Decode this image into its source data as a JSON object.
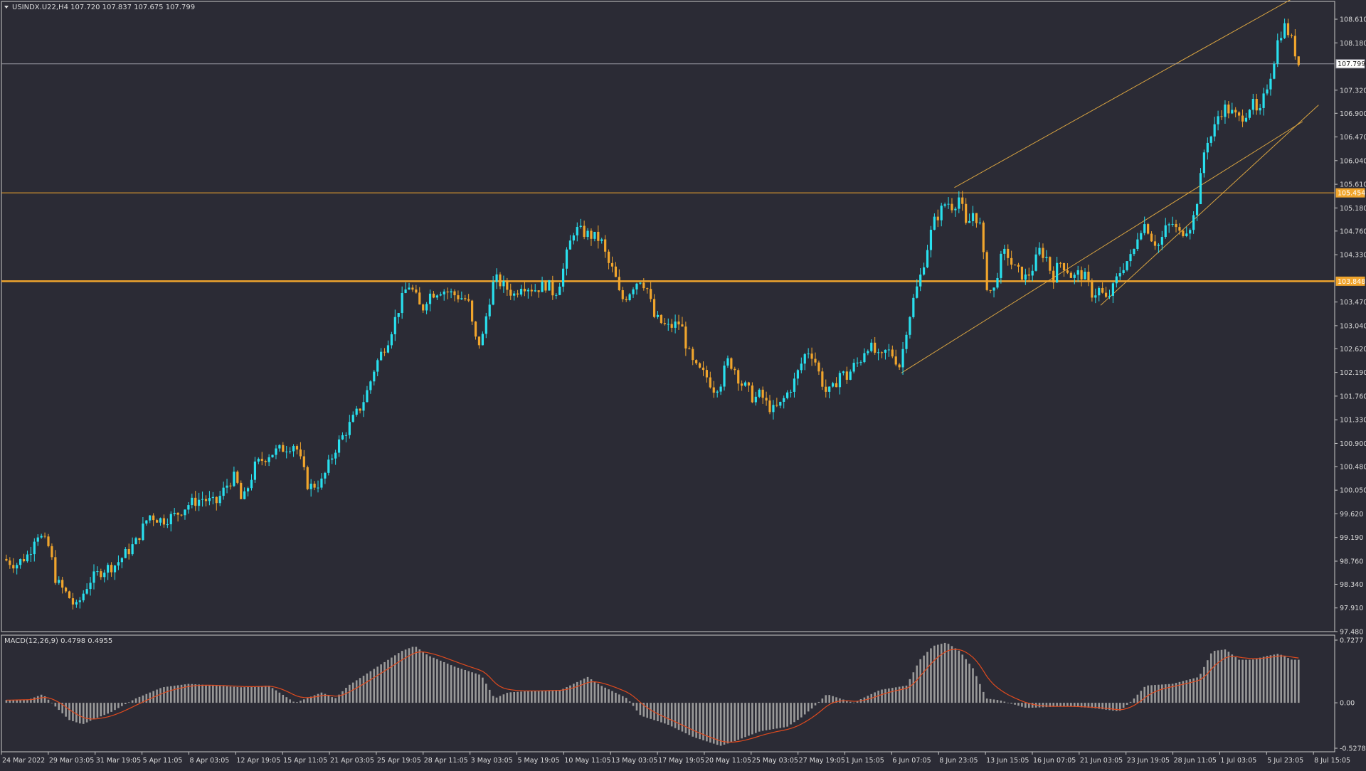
{
  "header": {
    "symbol_line": "USINDX.U22,H4  107.720 107.837 107.675 107.799"
  },
  "macd": {
    "label": "MACD(12,26,9) 0.4798 0.4955",
    "ticks": [
      "0.7277",
      "0.00",
      "-0.5278"
    ],
    "range": [
      -0.5278,
      0.7277
    ]
  },
  "colors": {
    "background": "#2b2b35",
    "bull": "#29e0ee",
    "bear": "#f0a52d",
    "level_line": "#f0a52d",
    "channel": "#d9a441",
    "price_line": "#9a9aa4",
    "histogram": "#9a9a9a",
    "signal": "#e04a1e",
    "axis_text": "#dcdcdc"
  },
  "chart_data": {
    "type": "candlestick",
    "y_ticks": [
      "108.610",
      "108.180",
      "107.320",
      "106.900",
      "106.470",
      "106.040",
      "105.610",
      "105.180",
      "104.760",
      "104.330",
      "103.470",
      "103.040",
      "102.620",
      "102.190",
      "101.760",
      "101.330",
      "100.900",
      "100.480",
      "100.050",
      "99.620",
      "99.190",
      "98.760",
      "98.340",
      "97.910",
      "97.480"
    ],
    "x_labels": [
      "24 Mar 2022",
      "29 Mar 03:05",
      "31 Mar 19:05",
      "5 Apr 11:05",
      "8 Apr 03:05",
      "12 Apr 19:05",
      "15 Apr 11:05",
      "21 Apr 03:05",
      "25 Apr 19:05",
      "28 Apr 11:05",
      "3 May 03:05",
      "5 May 19:05",
      "10 May 11:05",
      "13 May 03:05",
      "17 May 19:05",
      "20 May 11:05",
      "25 May 03:05",
      "27 May 19:05",
      "1 Jun 15:05",
      "6 Jun 07:05",
      "8 Jun 23:05",
      "13 Jun 15:05",
      "16 Jun 07:05",
      "21 Jun 03:05",
      "23 Jun 19:05",
      "28 Jun 11:05",
      "1 Jul 03:05",
      "5 Jul 23:05",
      "8 Jul 15:05"
    ],
    "price_labels": {
      "current": "107.799",
      "resistance": "105.454",
      "support": "103.848"
    },
    "levels": {
      "current": 107.799,
      "resistance": 105.454,
      "support": 103.848
    },
    "channel": [
      {
        "from": [
          0.676,
          102.18
        ],
        "to": [
          0.978,
          106.75
        ]
      },
      {
        "from": [
          0.826,
          103.41
        ],
        "to": [
          0.99,
          107.05
        ]
      },
      {
        "from": [
          0.716,
          105.55
        ],
        "to": [
          0.99,
          109.25
        ]
      }
    ],
    "path": [
      [
        0,
        98.8
      ],
      [
        0.01,
        98.7
      ],
      [
        0.02,
        98.9
      ],
      [
        0.025,
        99.3
      ],
      [
        0.035,
        99.0
      ],
      [
        0.04,
        98.4
      ],
      [
        0.05,
        98.1
      ],
      [
        0.055,
        97.9
      ],
      [
        0.065,
        98.4
      ],
      [
        0.075,
        98.6
      ],
      [
        0.085,
        98.7
      ],
      [
        0.1,
        99.1
      ],
      [
        0.11,
        99.6
      ],
      [
        0.12,
        99.5
      ],
      [
        0.13,
        99.6
      ],
      [
        0.14,
        99.8
      ],
      [
        0.15,
        99.9
      ],
      [
        0.16,
        99.8
      ],
      [
        0.17,
        100.2
      ],
      [
        0.175,
        100.3
      ],
      [
        0.18,
        99.8
      ],
      [
        0.19,
        100.5
      ],
      [
        0.2,
        100.7
      ],
      [
        0.21,
        100.8
      ],
      [
        0.22,
        100.9
      ],
      [
        0.225,
        100.5
      ],
      [
        0.23,
        100.1
      ],
      [
        0.24,
        100.2
      ],
      [
        0.25,
        100.8
      ],
      [
        0.26,
        101.2
      ],
      [
        0.27,
        101.6
      ],
      [
        0.275,
        101.9
      ],
      [
        0.28,
        102.3
      ],
      [
        0.29,
        102.8
      ],
      [
        0.3,
        103.5
      ],
      [
        0.305,
        103.8
      ],
      [
        0.31,
        103.6
      ],
      [
        0.315,
        103.3
      ],
      [
        0.32,
        103.6
      ],
      [
        0.33,
        103.7
      ],
      [
        0.34,
        103.6
      ],
      [
        0.35,
        103.5
      ],
      [
        0.355,
        102.8
      ],
      [
        0.36,
        102.7
      ],
      [
        0.365,
        103.4
      ],
      [
        0.37,
        103.9
      ],
      [
        0.38,
        103.7
      ],
      [
        0.385,
        103.6
      ],
      [
        0.39,
        103.8
      ],
      [
        0.4,
        103.7
      ],
      [
        0.41,
        103.8
      ],
      [
        0.415,
        103.6
      ],
      [
        0.42,
        103.9
      ],
      [
        0.425,
        104.4
      ],
      [
        0.43,
        104.8
      ],
      [
        0.44,
        104.7
      ],
      [
        0.45,
        104.6
      ],
      [
        0.455,
        104.2
      ],
      [
        0.46,
        104.0
      ],
      [
        0.465,
        103.5
      ],
      [
        0.47,
        103.6
      ],
      [
        0.475,
        103.8
      ],
      [
        0.48,
        103.9
      ],
      [
        0.485,
        103.7
      ],
      [
        0.49,
        103.2
      ],
      [
        0.5,
        103.0
      ],
      [
        0.51,
        103.1
      ],
      [
        0.515,
        102.6
      ],
      [
        0.52,
        102.3
      ],
      [
        0.53,
        102.1
      ],
      [
        0.535,
        101.9
      ],
      [
        0.54,
        102.0
      ],
      [
        0.545,
        102.4
      ],
      [
        0.55,
        102.3
      ],
      [
        0.555,
        102.0
      ],
      [
        0.56,
        101.9
      ],
      [
        0.565,
        101.7
      ],
      [
        0.57,
        101.8
      ],
      [
        0.575,
        101.6
      ],
      [
        0.58,
        101.5
      ],
      [
        0.585,
        101.6
      ],
      [
        0.59,
        101.8
      ],
      [
        0.595,
        102.0
      ],
      [
        0.6,
        102.3
      ],
      [
        0.605,
        102.6
      ],
      [
        0.61,
        102.5
      ],
      [
        0.615,
        102.1
      ],
      [
        0.62,
        101.8
      ],
      [
        0.625,
        101.9
      ],
      [
        0.63,
        102.2
      ],
      [
        0.635,
        102.1
      ],
      [
        0.64,
        102.3
      ],
      [
        0.645,
        102.4
      ],
      [
        0.65,
        102.7
      ],
      [
        0.655,
        102.6
      ],
      [
        0.66,
        102.4
      ],
      [
        0.665,
        102.6
      ],
      [
        0.67,
        102.5
      ],
      [
        0.675,
        102.3
      ],
      [
        0.68,
        103.0
      ],
      [
        0.685,
        103.5
      ],
      [
        0.69,
        103.9
      ],
      [
        0.695,
        104.4
      ],
      [
        0.7,
        104.9
      ],
      [
        0.705,
        105.1
      ],
      [
        0.71,
        105.3
      ],
      [
        0.715,
        105.2
      ],
      [
        0.72,
        105.4
      ],
      [
        0.725,
        104.8
      ],
      [
        0.73,
        105.1
      ],
      [
        0.735,
        104.9
      ],
      [
        0.74,
        103.8
      ],
      [
        0.745,
        103.6
      ],
      [
        0.75,
        104.2
      ],
      [
        0.755,
        104.4
      ],
      [
        0.76,
        104.1
      ],
      [
        0.765,
        104.0
      ],
      [
        0.77,
        103.9
      ],
      [
        0.775,
        104.1
      ],
      [
        0.78,
        104.4
      ],
      [
        0.785,
        104.3
      ],
      [
        0.79,
        103.9
      ],
      [
        0.795,
        104.2
      ],
      [
        0.8,
        104.1
      ],
      [
        0.805,
        103.9
      ],
      [
        0.81,
        104.0
      ],
      [
        0.815,
        103.9
      ],
      [
        0.82,
        103.6
      ],
      [
        0.825,
        103.7
      ],
      [
        0.83,
        103.5
      ],
      [
        0.835,
        103.7
      ],
      [
        0.84,
        104.0
      ],
      [
        0.845,
        104.2
      ],
      [
        0.85,
        104.3
      ],
      [
        0.855,
        104.8
      ],
      [
        0.86,
        104.9
      ],
      [
        0.865,
        104.6
      ],
      [
        0.87,
        104.5
      ],
      [
        0.875,
        104.8
      ],
      [
        0.88,
        104.9
      ],
      [
        0.885,
        104.7
      ],
      [
        0.89,
        104.8
      ],
      [
        0.895,
        104.9
      ],
      [
        0.9,
        105.5
      ],
      [
        0.905,
        106.4
      ],
      [
        0.91,
        106.5
      ],
      [
        0.915,
        106.9
      ],
      [
        0.92,
        107.0
      ],
      [
        0.925,
        106.9
      ],
      [
        0.93,
        106.8
      ],
      [
        0.935,
        106.9
      ],
      [
        0.94,
        107.1
      ],
      [
        0.945,
        106.8
      ],
      [
        0.95,
        107.3
      ],
      [
        0.955,
        107.7
      ],
      [
        0.96,
        108.3
      ],
      [
        0.965,
        108.5
      ],
      [
        0.97,
        108.2
      ],
      [
        0.975,
        107.8
      ]
    ],
    "macd_path": [
      [
        0,
        0.03
      ],
      [
        0.02,
        0.04
      ],
      [
        0.03,
        0.1
      ],
      [
        0.04,
        -0.05
      ],
      [
        0.05,
        -0.2
      ],
      [
        0.06,
        -0.25
      ],
      [
        0.07,
        -0.18
      ],
      [
        0.08,
        -0.12
      ],
      [
        0.1,
        0.05
      ],
      [
        0.12,
        0.18
      ],
      [
        0.14,
        0.22
      ],
      [
        0.16,
        0.2
      ],
      [
        0.18,
        0.18
      ],
      [
        0.2,
        0.2
      ],
      [
        0.21,
        0.1
      ],
      [
        0.22,
        0.0
      ],
      [
        0.24,
        0.12
      ],
      [
        0.25,
        0.05
      ],
      [
        0.26,
        0.2
      ],
      [
        0.28,
        0.4
      ],
      [
        0.3,
        0.6
      ],
      [
        0.31,
        0.66
      ],
      [
        0.32,
        0.55
      ],
      [
        0.34,
        0.42
      ],
      [
        0.36,
        0.32
      ],
      [
        0.37,
        0.05
      ],
      [
        0.38,
        0.12
      ],
      [
        0.4,
        0.14
      ],
      [
        0.42,
        0.15
      ],
      [
        0.44,
        0.3
      ],
      [
        0.45,
        0.2
      ],
      [
        0.47,
        0.05
      ],
      [
        0.48,
        -0.15
      ],
      [
        0.5,
        -0.25
      ],
      [
        0.52,
        -0.4
      ],
      [
        0.54,
        -0.5
      ],
      [
        0.55,
        -0.45
      ],
      [
        0.57,
        -0.33
      ],
      [
        0.59,
        -0.28
      ],
      [
        0.6,
        -0.18
      ],
      [
        0.61,
        -0.05
      ],
      [
        0.62,
        0.1
      ],
      [
        0.63,
        0.05
      ],
      [
        0.64,
        0.0
      ],
      [
        0.66,
        0.15
      ],
      [
        0.68,
        0.2
      ],
      [
        0.69,
        0.5
      ],
      [
        0.7,
        0.66
      ],
      [
        0.71,
        0.7
      ],
      [
        0.72,
        0.6
      ],
      [
        0.73,
        0.4
      ],
      [
        0.74,
        0.05
      ],
      [
        0.75,
        0.03
      ],
      [
        0.77,
        -0.06
      ],
      [
        0.8,
        -0.04
      ],
      [
        0.82,
        -0.06
      ],
      [
        0.84,
        -0.1
      ],
      [
        0.85,
        0.03
      ],
      [
        0.86,
        0.2
      ],
      [
        0.88,
        0.22
      ],
      [
        0.9,
        0.3
      ],
      [
        0.91,
        0.6
      ],
      [
        0.92,
        0.62
      ],
      [
        0.93,
        0.5
      ],
      [
        0.94,
        0.5
      ],
      [
        0.95,
        0.54
      ],
      [
        0.96,
        0.57
      ],
      [
        0.97,
        0.5
      ]
    ]
  }
}
